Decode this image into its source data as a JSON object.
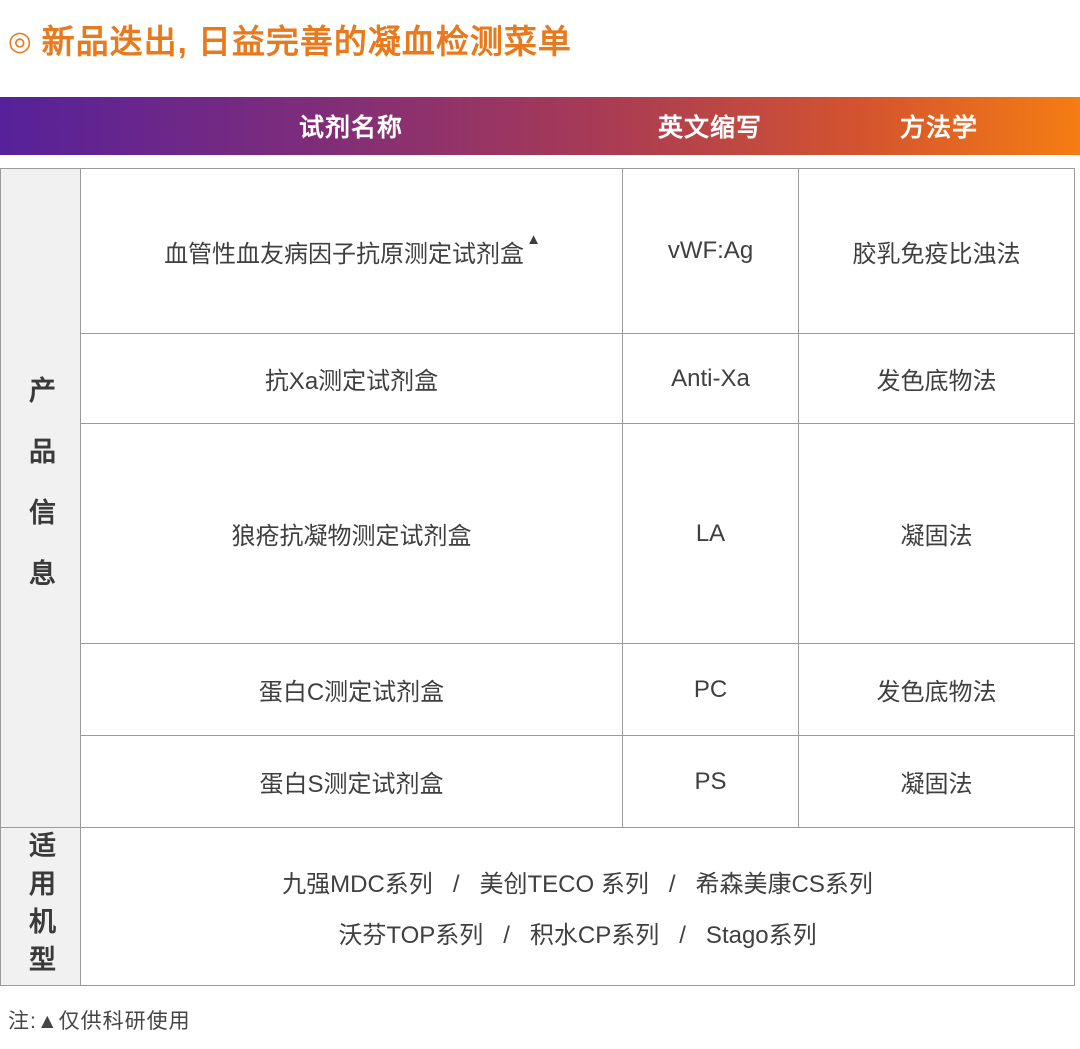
{
  "title": {
    "bullet": "◎",
    "text": "新品迭出, 日益完善的凝血检测菜单"
  },
  "colors": {
    "title_orange": "#E8791D",
    "header_gradient_left": "#56219A",
    "header_gradient_mid": "#A73A56",
    "header_gradient_right": "#F57D13",
    "header_text": "#FFFFFF",
    "table_border": "#9B9B9B",
    "sidebar_background": "#F1F1F1",
    "body_text": "#3F3F3F"
  },
  "table": {
    "columns": [
      "试剂名称",
      "英文缩写",
      "方法学"
    ],
    "group1_label": "产品信息",
    "group2_label": "适用机型",
    "rows": [
      {
        "name": "血管性血友病因子抗原测定试剂盒",
        "marker": "▲",
        "abbr": "vWF:Ag",
        "method": "胶乳免疫比浊法"
      },
      {
        "name": "抗Xa测定试剂盒",
        "marker": "",
        "abbr": "Anti-Xa",
        "method": "发色底物法"
      },
      {
        "name": "狼疮抗凝物测定试剂盒",
        "marker": "",
        "abbr": "LA",
        "method": "凝固法"
      },
      {
        "name": "蛋白C测定试剂盒",
        "marker": "",
        "abbr": "PC",
        "method": "发色底物法"
      },
      {
        "name": "蛋白S测定试剂盒",
        "marker": "",
        "abbr": "PS",
        "method": "凝固法"
      }
    ],
    "models_lines": [
      "九强MDC系列   /   美创TECO 系列   /   希森美康CS系列",
      "沃芬TOP系列   /   积水CP系列   /   Stago系列"
    ]
  },
  "note": {
    "text": "注:▲仅供科研使用"
  }
}
